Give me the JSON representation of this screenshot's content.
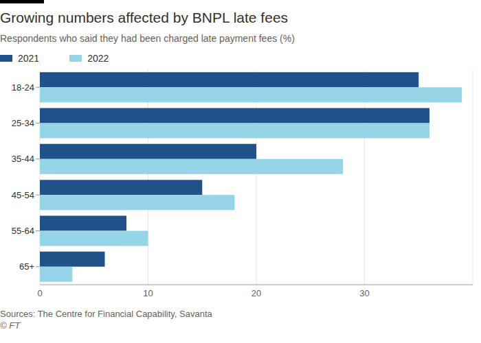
{
  "chart_data": {
    "type": "bar",
    "title": "Growing numbers affected by BNPL late fees",
    "subtitle": "Respondents who said they had been charged late payment fees (%)",
    "annotations": [
      "Sources: The Centre for Financial Capability, Savanta",
      "© FT"
    ],
    "orientation": "horizontal",
    "categories": [
      "18-24",
      "25-34",
      "35-44",
      "45-54",
      "55-64",
      "65+"
    ],
    "series": [
      {
        "name": "2021",
        "color": "#1f5289",
        "values": [
          35,
          36,
          20,
          15,
          8,
          6
        ]
      },
      {
        "name": "2022",
        "color": "#96d4e8",
        "values": [
          39,
          36,
          28,
          18,
          10,
          3
        ]
      }
    ],
    "xlim": [
      0,
      40
    ],
    "xticks": [
      0,
      10,
      20,
      30
    ],
    "grid": true,
    "legend": "top-left"
  }
}
